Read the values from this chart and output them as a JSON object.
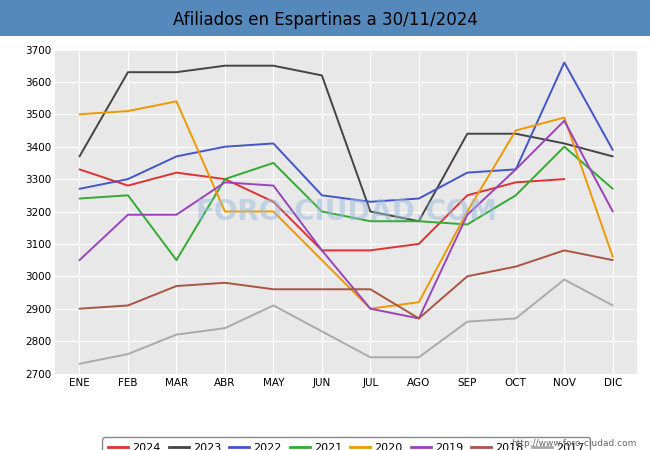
{
  "title": "Afiliados en Espartinas a 30/11/2024",
  "title_bg": "#5588bb",
  "months": [
    "ENE",
    "FEB",
    "MAR",
    "ABR",
    "MAY",
    "JUN",
    "JUL",
    "AGO",
    "SEP",
    "OCT",
    "NOV",
    "DIC"
  ],
  "series": {
    "2024": {
      "color": "#dd3333",
      "data": [
        3330,
        3280,
        3320,
        3300,
        3230,
        3080,
        3080,
        3100,
        3250,
        3290,
        3300,
        null
      ]
    },
    "2023": {
      "color": "#444444",
      "data": [
        3370,
        3630,
        3630,
        3650,
        3650,
        3620,
        3200,
        3170,
        3440,
        3440,
        3410,
        3370
      ]
    },
    "2022": {
      "color": "#4455cc",
      "data": [
        3270,
        3300,
        3370,
        3400,
        3410,
        3250,
        3230,
        3240,
        3320,
        3330,
        3660,
        3390
      ]
    },
    "2021": {
      "color": "#33aa33",
      "data": [
        3240,
        3250,
        3050,
        3300,
        3350,
        3200,
        3170,
        3170,
        3160,
        3250,
        3400,
        3270
      ]
    },
    "2020": {
      "color": "#ee9900",
      "data": [
        3500,
        3510,
        3540,
        3200,
        3200,
        3050,
        2900,
        2920,
        3200,
        3450,
        3490,
        3060
      ]
    },
    "2019": {
      "color": "#9944bb",
      "data": [
        3050,
        3190,
        3190,
        3290,
        3280,
        3080,
        2900,
        2870,
        3190,
        3330,
        3480,
        3200
      ]
    },
    "2018": {
      "color": "#aa5544",
      "data": [
        2900,
        2910,
        2970,
        2980,
        2960,
        2960,
        2960,
        2870,
        3000,
        3030,
        3080,
        3050
      ]
    },
    "2017": {
      "color": "#aaaaaa",
      "data": [
        2730,
        2760,
        2820,
        2840,
        2910,
        2830,
        2750,
        2750,
        2860,
        2870,
        2990,
        2910
      ]
    }
  },
  "ylim": [
    2700,
    3700
  ],
  "yticks": [
    2700,
    2800,
    2900,
    3000,
    3100,
    3200,
    3300,
    3400,
    3500,
    3600,
    3700
  ],
  "watermark": "FORO-CIUDAD.COM",
  "footer_url": "http://www.foro-ciudad.com",
  "plot_bg": "#e8e8e8",
  "fig_bg": "#ffffff",
  "legend_years": [
    "2024",
    "2023",
    "2022",
    "2021",
    "2020",
    "2019",
    "2018",
    "2017"
  ]
}
